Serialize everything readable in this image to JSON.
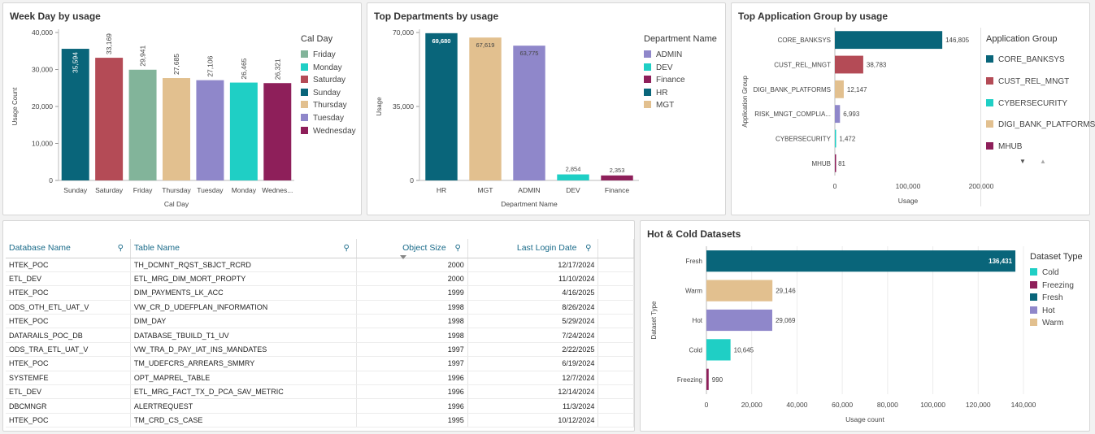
{
  "colors": {
    "teal_dark": "#09657a",
    "red": "#b44b56",
    "sage": "#82b49a",
    "tan": "#e2c08f",
    "lavender": "#8f87ca",
    "cyan": "#1fcfc5",
    "maroon": "#8e1f5a",
    "header_blue": "#1a6b8a"
  },
  "panels": {
    "weekday": {
      "title": "Week Day by usage"
    },
    "departments": {
      "title": "Top Departments by usage"
    },
    "appgroup": {
      "title": "Top Application Group by usage"
    },
    "hotcold": {
      "title": "Hot & Cold Datasets"
    }
  },
  "appgroup_legend_scroll": {
    "down": "▼",
    "up": "▲"
  },
  "table": {
    "columns": [
      "Database Name",
      "Table Name",
      "Object Size",
      "Last Login Date"
    ],
    "search_icon": "⚲",
    "rows": [
      [
        "HTEK_POC",
        "TH_DCMNT_RQST_SBJCT_RCRD",
        "2000",
        "12/17/2024"
      ],
      [
        "ETL_DEV",
        "ETL_MRG_DIM_MORT_PROPTY",
        "2000",
        "11/10/2024"
      ],
      [
        "HTEK_POC",
        "DIM_PAYMENTS_LK_ACC",
        "1999",
        "4/16/2025"
      ],
      [
        "ODS_OTH_ETL_UAT_V",
        "VW_CR_D_UDEFPLAN_INFORMATION",
        "1998",
        "8/26/2024"
      ],
      [
        "HTEK_POC",
        "DIM_DAY",
        "1998",
        "5/29/2024"
      ],
      [
        "DATARAILS_POC_DB",
        "DATABASE_TBUILD_T1_UV",
        "1998",
        "7/24/2024"
      ],
      [
        "ODS_TRA_ETL_UAT_V",
        "VW_TRA_D_PAY_IAT_INS_MANDATES",
        "1997",
        "2/22/2025"
      ],
      [
        "HTEK_POC",
        "TM_UDEFCRS_ARREARS_SMMRY",
        "1997",
        "6/19/2024"
      ],
      [
        "SYSTEMFE",
        "OPT_MAPREL_TABLE",
        "1996",
        "12/7/2024"
      ],
      [
        "ETL_DEV",
        "ETL_MRG_FACT_TX_D_PCA_SAV_METRIC",
        "1996",
        "12/14/2024"
      ],
      [
        "DBCMNGR",
        "ALERTREQUEST",
        "1996",
        "11/3/2024"
      ],
      [
        "HTEK_POC",
        "TM_CRD_CS_CASE",
        "1995",
        "10/12/2024"
      ]
    ]
  },
  "chart_data": [
    {
      "type": "bar",
      "title": "Week Day by usage",
      "xlabel": "Cal Day",
      "ylabel": "Usage Count",
      "ylim": [
        0,
        40000
      ],
      "yticks": [
        "0",
        "10,000",
        "20,000",
        "30,000",
        "40,000"
      ],
      "ytick_values": [
        0,
        10000,
        20000,
        30000,
        40000
      ],
      "categories": [
        "Sunday",
        "Saturday",
        "Friday",
        "Thursday",
        "Tuesday",
        "Monday",
        "Wednes..."
      ],
      "values": [
        35594,
        33169,
        29941,
        27685,
        27106,
        26465,
        26321
      ],
      "labels": [
        "35,594",
        "33,169",
        "29,941",
        "27,685",
        "27,106",
        "26,465",
        "26,321"
      ],
      "bar_colors": [
        "#09657a",
        "#b44b56",
        "#82b49a",
        "#e2c08f",
        "#8f87ca",
        "#1fcfc5",
        "#8e1f5a"
      ],
      "legend_title": "Cal Day",
      "legend": [
        {
          "name": "Friday",
          "color": "#82b49a"
        },
        {
          "name": "Monday",
          "color": "#1fcfc5"
        },
        {
          "name": "Saturday",
          "color": "#b44b56"
        },
        {
          "name": "Sunday",
          "color": "#09657a"
        },
        {
          "name": "Thursday",
          "color": "#e2c08f"
        },
        {
          "name": "Tuesday",
          "color": "#8f87ca"
        },
        {
          "name": "Wednesday",
          "color": "#8e1f5a"
        }
      ]
    },
    {
      "type": "bar",
      "title": "Top Departments by usage",
      "xlabel": "Department Name",
      "ylabel": "Usage",
      "ylim": [
        0,
        70000
      ],
      "yticks": [
        "0",
        "35,000",
        "70,000"
      ],
      "ytick_values": [
        0,
        35000,
        70000
      ],
      "categories": [
        "HR",
        "MGT",
        "ADMIN",
        "DEV",
        "Finance"
      ],
      "values": [
        69680,
        67619,
        63775,
        2854,
        2353
      ],
      "labels": [
        "69,680",
        "67,619",
        "63,775",
        "2,854",
        "2,353"
      ],
      "bar_colors": [
        "#09657a",
        "#e2c08f",
        "#8f87ca",
        "#1fcfc5",
        "#8e1f5a"
      ],
      "legend_title": "Department Name",
      "legend": [
        {
          "name": "ADMIN",
          "color": "#8f87ca"
        },
        {
          "name": "DEV",
          "color": "#1fcfc5"
        },
        {
          "name": "Finance",
          "color": "#8e1f5a"
        },
        {
          "name": "HR",
          "color": "#09657a"
        },
        {
          "name": "MGT",
          "color": "#e2c08f"
        }
      ]
    },
    {
      "type": "bar",
      "orientation": "horizontal",
      "title": "Top Application Group by usage",
      "xlabel": "Usage",
      "ylabel": "Application Group",
      "xlim": [
        0,
        200000
      ],
      "xticks": [
        "0",
        "100,000",
        "200,000"
      ],
      "xtick_values": [
        0,
        100000,
        200000
      ],
      "categories": [
        "CORE_BANKSYS",
        "CUST_REL_MNGT",
        "DIGI_BANK_PLATFORMS",
        "RISK_MNGT_COMPLIA...",
        "CYBERSECURITY",
        "MHUB"
      ],
      "values": [
        146805,
        38783,
        12147,
        6993,
        1472,
        81
      ],
      "labels": [
        "146,805",
        "38,783",
        "12,147",
        "6,993",
        "1,472",
        "81"
      ],
      "bar_colors": [
        "#09657a",
        "#b44b56",
        "#e2c08f",
        "#8f87ca",
        "#1fcfc5",
        "#8e1f5a"
      ],
      "legend_title": "Application Group",
      "legend": [
        {
          "name": "CORE_BANKSYS",
          "color": "#09657a"
        },
        {
          "name": "CUST_REL_MNGT",
          "color": "#b44b56"
        },
        {
          "name": "CYBERSECURITY",
          "color": "#1fcfc5"
        },
        {
          "name": "DIGI_BANK_PLATFORMS",
          "color": "#e2c08f"
        },
        {
          "name": "MHUB",
          "color": "#8e1f5a"
        }
      ]
    },
    {
      "type": "bar",
      "orientation": "horizontal",
      "title": "Hot & Cold Datasets",
      "xlabel": "Usage count",
      "ylabel": "Dataset Type",
      "xlim": [
        0,
        140000
      ],
      "xticks": [
        "0",
        "20,000",
        "40,000",
        "60,000",
        "80,000",
        "100,000",
        "120,000",
        "140,000"
      ],
      "xtick_values": [
        0,
        20000,
        40000,
        60000,
        80000,
        100000,
        120000,
        140000
      ],
      "categories": [
        "Fresh",
        "Warm",
        "Hot",
        "Cold",
        "Freezing"
      ],
      "values": [
        136431,
        29146,
        29069,
        10645,
        990
      ],
      "labels": [
        "136,431",
        "29,146",
        "29,069",
        "10,645",
        "990"
      ],
      "bar_colors": [
        "#09657a",
        "#e2c08f",
        "#8f87ca",
        "#1fcfc5",
        "#8e1f5a"
      ],
      "legend_title": "Dataset Type",
      "legend": [
        {
          "name": "Cold",
          "color": "#1fcfc5"
        },
        {
          "name": "Freezing",
          "color": "#8e1f5a"
        },
        {
          "name": "Fresh",
          "color": "#09657a"
        },
        {
          "name": "Hot",
          "color": "#8f87ca"
        },
        {
          "name": "Warm",
          "color": "#e2c08f"
        }
      ]
    }
  ]
}
